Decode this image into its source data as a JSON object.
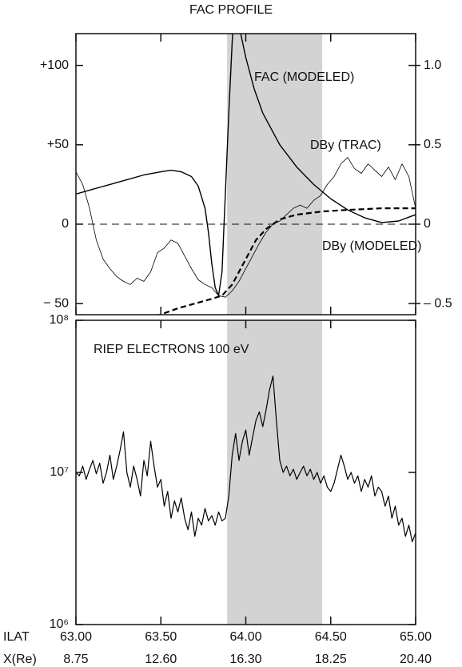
{
  "chart_data": [
    {
      "type": "line",
      "title": "FAC PROFILE",
      "xlim": [
        63,
        65
      ],
      "xticks": [
        63,
        63.5,
        64,
        64.5,
        65
      ],
      "ylim": [
        -57,
        120
      ],
      "yticks": [
        {
          "value": 100,
          "label": "+100"
        },
        {
          "value": 50,
          "label": "+50"
        },
        0,
        {
          "value": -50,
          "label": "− 50"
        }
      ],
      "y2lim": [
        -0.57,
        1.2
      ],
      "y2ticks": [
        {
          "value": 1,
          "label": "1.0"
        },
        0.5,
        0,
        {
          "value": -0.5,
          "label": "– 0.5"
        }
      ],
      "shade": [
        63.89,
        64.45
      ],
      "shade_color": "#d3d3d3",
      "hline": 0,
      "series": [
        {
          "name": "FAC (MODELED)",
          "color": "#000000",
          "width": 1.4,
          "dash": false,
          "x": [
            63.0,
            63.1,
            63.2,
            63.3,
            63.4,
            63.5,
            63.56,
            63.62,
            63.68,
            63.72,
            63.76,
            63.78,
            63.8,
            63.82,
            63.84,
            63.86,
            63.88,
            63.9,
            63.92,
            63.93,
            63.96,
            64.0,
            64.05,
            64.1,
            64.2,
            64.3,
            64.4,
            64.5,
            64.6,
            64.7,
            64.8,
            64.9,
            65.0
          ],
          "values": [
            19,
            22,
            25,
            28,
            31,
            33,
            34,
            33,
            30,
            24,
            10,
            -5,
            -25,
            -40,
            -45,
            -30,
            20,
            70,
            115,
            130,
            125,
            105,
            85,
            70,
            50,
            36,
            25,
            16,
            9,
            4,
            1,
            2,
            6
          ]
        },
        {
          "name": "DBy (TRAC)",
          "color": "#000000",
          "width": 0.8,
          "dash": false,
          "axis": "y2",
          "x": [
            63.0,
            63.04,
            63.08,
            63.12,
            63.16,
            63.2,
            63.24,
            63.28,
            63.32,
            63.36,
            63.4,
            63.44,
            63.48,
            63.52,
            63.56,
            63.6,
            63.64,
            63.68,
            63.72,
            63.76,
            63.8,
            63.84,
            63.88,
            63.92,
            63.96,
            64.0,
            64.04,
            64.08,
            64.12,
            64.16,
            64.2,
            64.24,
            64.28,
            64.32,
            64.36,
            64.4,
            64.44,
            64.48,
            64.52,
            64.56,
            64.6,
            64.64,
            64.68,
            64.72,
            64.76,
            64.8,
            64.84,
            64.88,
            64.92,
            64.96,
            65.0
          ],
          "values": [
            0.33,
            0.25,
            0.1,
            -0.1,
            -0.22,
            -0.28,
            -0.33,
            -0.36,
            -0.38,
            -0.34,
            -0.36,
            -0.3,
            -0.18,
            -0.15,
            -0.1,
            -0.12,
            -0.2,
            -0.28,
            -0.35,
            -0.38,
            -0.4,
            -0.45,
            -0.46,
            -0.42,
            -0.36,
            -0.28,
            -0.2,
            -0.12,
            -0.05,
            0.0,
            0.02,
            0.06,
            0.1,
            0.12,
            0.1,
            0.15,
            0.18,
            0.25,
            0.3,
            0.38,
            0.42,
            0.35,
            0.32,
            0.38,
            0.34,
            0.3,
            0.36,
            0.28,
            0.38,
            0.3,
            0.1
          ]
        },
        {
          "name": "DBy (MODELED)",
          "color": "#000000",
          "width": 2.2,
          "dash": true,
          "axis": "y2",
          "x": [
            63.47,
            63.6,
            63.7,
            63.8,
            63.86,
            63.92,
            64.0,
            64.06,
            64.12,
            64.2,
            64.3,
            64.45,
            64.6,
            64.8,
            65.0
          ],
          "values": [
            -0.58,
            -0.53,
            -0.5,
            -0.47,
            -0.45,
            -0.38,
            -0.22,
            -0.1,
            -0.03,
            0.03,
            0.06,
            0.08,
            0.09,
            0.1,
            0.1
          ]
        }
      ]
    },
    {
      "type": "line",
      "log_y": true,
      "xlim": [
        63,
        65
      ],
      "xlabel": "ILAT",
      "xticks": [
        {
          "value": 63,
          "label": "63.00"
        },
        {
          "value": 63.5,
          "label": "63.50"
        },
        {
          "value": 64,
          "label": "64.00"
        },
        {
          "value": 64.5,
          "label": "64.50"
        },
        {
          "value": 65,
          "label": "65.00"
        }
      ],
      "x2label": "X(Re)",
      "x2ticks": [
        {
          "value": 8.75,
          "label": "8.75"
        },
        {
          "value": 12.6,
          "label": "12.60"
        },
        {
          "value": 16.3,
          "label": "16.30"
        },
        {
          "value": 18.25,
          "label": "18.25"
        },
        {
          "value": 20.4,
          "label": "20.40"
        }
      ],
      "ylim": [
        1000000,
        100000000
      ],
      "yticks": [
        {
          "value": 100000000,
          "label": "10⁸"
        },
        {
          "value": 10000000,
          "label": "10⁷"
        },
        {
          "value": 1000000,
          "label": "10⁶"
        }
      ],
      "shade": [
        63.89,
        64.45
      ],
      "shade_color": "#d3d3d3",
      "series": [
        {
          "name": "RIEP ELECTRONS 100 eV",
          "color": "#000000",
          "width": 1.2,
          "dash": false,
          "x": [
            63.0,
            63.02,
            63.04,
            63.06,
            63.08,
            63.1,
            63.12,
            63.14,
            63.16,
            63.18,
            63.2,
            63.22,
            63.24,
            63.26,
            63.28,
            63.3,
            63.32,
            63.34,
            63.36,
            63.38,
            63.4,
            63.42,
            63.44,
            63.46,
            63.48,
            63.5,
            63.52,
            63.54,
            63.56,
            63.58,
            63.6,
            63.62,
            63.64,
            63.66,
            63.68,
            63.7,
            63.72,
            63.74,
            63.76,
            63.78,
            63.8,
            63.82,
            63.84,
            63.86,
            63.88,
            63.9,
            63.92,
            63.94,
            63.96,
            63.98,
            64.0,
            64.02,
            64.04,
            64.06,
            64.08,
            64.1,
            64.12,
            64.14,
            64.16,
            64.18,
            64.2,
            64.22,
            64.24,
            64.26,
            64.28,
            64.3,
            64.32,
            64.34,
            64.36,
            64.38,
            64.4,
            64.42,
            64.44,
            64.46,
            64.48,
            64.5,
            64.52,
            64.54,
            64.56,
            64.58,
            64.6,
            64.62,
            64.64,
            64.66,
            64.68,
            64.7,
            64.72,
            64.74,
            64.76,
            64.78,
            64.8,
            64.82,
            64.84,
            64.86,
            64.88,
            64.9,
            64.92,
            64.94,
            64.96,
            64.98,
            65.0
          ],
          "values": [
            10000000.0,
            9500000.0,
            11000000.0,
            9000000.0,
            10500000.0,
            12000000.0,
            9800000.0,
            11500000.0,
            8500000.0,
            10000000.0,
            13000000.0,
            9000000.0,
            11000000.0,
            14000000.0,
            18500000.0,
            10000000.0,
            8000000.0,
            11000000.0,
            9000000.0,
            7000000.0,
            12000000.0,
            9500000.0,
            16000000.0,
            11000000.0,
            8000000.0,
            9000000.0,
            6000000.0,
            7500000.0,
            5000000.0,
            6500000.0,
            5500000.0,
            6800000.0,
            5000000.0,
            4200000.0,
            5500000.0,
            3800000.0,
            5000000.0,
            4500000.0,
            5800000.0,
            4800000.0,
            5200000.0,
            4500000.0,
            5500000.0,
            4800000.0,
            5000000.0,
            7000000.0,
            13000000.0,
            18000000.0,
            12000000.0,
            16000000.0,
            19000000.0,
            13000000.0,
            17000000.0,
            22000000.0,
            25000000.0,
            20000000.0,
            26000000.0,
            35000000.0,
            43000000.0,
            22000000.0,
            12000000.0,
            10000000.0,
            11000000.0,
            9500000.0,
            10500000.0,
            9000000.0,
            10000000.0,
            11000000.0,
            9500000.0,
            10500000.0,
            9000000.0,
            10000000.0,
            8500000.0,
            9500000.0,
            8000000.0,
            7500000.0,
            8500000.0,
            10500000.0,
            13000000.0,
            11000000.0,
            9000000.0,
            10000000.0,
            8500000.0,
            9500000.0,
            7500000.0,
            9000000.0,
            8000000.0,
            9500000.0,
            7000000.0,
            8000000.0,
            7500000.0,
            6000000.0,
            7000000.0,
            5000000.0,
            6000000.0,
            4500000.0,
            5000000.0,
            3800000.0,
            4500000.0,
            3500000.0,
            4000000.0
          ]
        }
      ]
    }
  ]
}
